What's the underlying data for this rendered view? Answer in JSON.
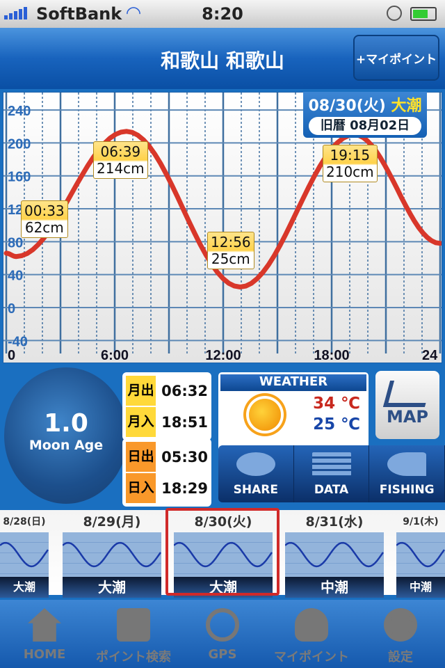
{
  "status": {
    "carrier": "SoftBank",
    "time": "8:20"
  },
  "nav": {
    "title": "和歌山 和歌山",
    "mypoint_button": "+マイポイント"
  },
  "date_box": {
    "date": "08/30(火)",
    "tide": "大潮",
    "lunar": "旧暦 08月02日"
  },
  "chart_data": {
    "type": "line",
    "xlim": [
      0,
      24
    ],
    "ylim": [
      -40,
      250
    ],
    "x_ticks": [
      "0",
      "6:00",
      "12:00",
      "18:00",
      "24"
    ],
    "y_ticks": [
      "-40",
      "0",
      "40",
      "80",
      "120",
      "160",
      "200",
      "240"
    ],
    "series": [
      {
        "x": [
          0,
          0.55,
          6.65,
          12.93,
          19.25,
          24
        ],
        "values": [
          66,
          62,
          214,
          25,
          210,
          78
        ]
      }
    ],
    "annotations": [
      {
        "time": "00:33",
        "height": "62cm"
      },
      {
        "time": "06:39",
        "height": "214cm"
      },
      {
        "time": "12:56",
        "height": "25cm"
      },
      {
        "time": "19:15",
        "height": "210cm"
      }
    ],
    "line_color": "#d8372a",
    "grid": true
  },
  "moon": {
    "age": "1.0",
    "label": "Moon Age"
  },
  "moonrise": {
    "label": "月出",
    "time": "06:32"
  },
  "moonset": {
    "label": "月入",
    "time": "18:51"
  },
  "sunrise": {
    "label": "日出",
    "time": "05:30"
  },
  "sunset": {
    "label": "日入",
    "time": "18:29"
  },
  "weather": {
    "title": "WEATHER",
    "icon": "sun-icon",
    "high": "34 ℃",
    "low": "25 ℃"
  },
  "map_label": "MAP",
  "actions": [
    {
      "label": "SHARE"
    },
    {
      "label": "DATA"
    },
    {
      "label": "FISHING"
    }
  ],
  "days": [
    {
      "date": "8/28(日)",
      "tide": "大潮"
    },
    {
      "date": "8/29(月)",
      "tide": "大潮"
    },
    {
      "date": "8/30(火)",
      "tide": "大潮"
    },
    {
      "date": "8/31(水)",
      "tide": "中潮"
    },
    {
      "date": "9/1(木)",
      "tide": "中潮"
    }
  ],
  "tabs": [
    {
      "label": "HOME"
    },
    {
      "label": "ポイント検索"
    },
    {
      "label": "GPS"
    },
    {
      "label": "マイポイント"
    },
    {
      "label": "設定"
    }
  ]
}
